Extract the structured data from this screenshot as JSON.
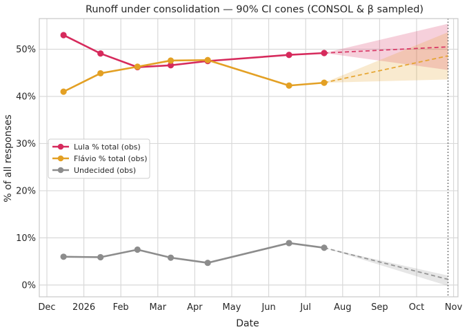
{
  "chart_data": {
    "type": "line",
    "title": "Runoff under consolidation — 90% CI cones (CONSOL & β sampled)",
    "xlabel": "Date",
    "ylabel": "% of all responses",
    "x_ticks": [
      "Dec",
      "2026",
      "Feb",
      "Mar",
      "Apr",
      "May",
      "Jun",
      "Jul",
      "Aug",
      "Sep",
      "Oct",
      "Nov"
    ],
    "y_ticks": [
      "0%",
      "10%",
      "20%",
      "30%",
      "40%",
      "50%"
    ],
    "ylim": [
      -2.5,
      56.5
    ],
    "grid": true,
    "legend_position": "center-left",
    "vertical_marker": {
      "x": 10.85,
      "style": "dotted"
    },
    "series": [
      {
        "name": "Lula % total (obs)",
        "color": "#d62a5c",
        "x": [
          0.45,
          1.45,
          2.45,
          3.35,
          4.35,
          6.55,
          7.5
        ],
        "values": [
          53.0,
          49.1,
          46.2,
          46.6,
          47.5,
          48.8,
          49.2
        ],
        "forecast": {
          "x": [
            7.5,
            10.85
          ],
          "values": [
            49.2,
            50.5
          ]
        },
        "ci_band": {
          "x": [
            7.5,
            10.85
          ],
          "lower": [
            49.2,
            45.6
          ],
          "upper": [
            49.2,
            55.4
          ]
        }
      },
      {
        "name": "Flávio % total (obs)",
        "color": "#e3a024",
        "x": [
          0.45,
          1.45,
          2.45,
          3.35,
          4.35,
          6.55,
          7.5
        ],
        "values": [
          41.0,
          44.9,
          46.3,
          47.6,
          47.7,
          42.3,
          42.9
        ],
        "forecast": {
          "x": [
            7.5,
            10.85
          ],
          "values": [
            42.9,
            48.6
          ]
        },
        "ci_band": {
          "x": [
            7.5,
            10.85
          ],
          "lower": [
            42.9,
            43.6
          ],
          "upper": [
            42.9,
            53.6
          ]
        }
      },
      {
        "name": "Undecided (obs)",
        "color": "#8c8c8c",
        "x": [
          0.45,
          1.45,
          2.45,
          3.35,
          4.35,
          6.55,
          7.5
        ],
        "values": [
          6.0,
          5.9,
          7.5,
          5.8,
          4.7,
          8.9,
          7.9
        ],
        "forecast": {
          "x": [
            7.5,
            10.85
          ],
          "values": [
            7.9,
            1.2
          ]
        },
        "ci_band": {
          "x": [
            7.5,
            10.85
          ],
          "lower": [
            7.9,
            -0.2
          ],
          "upper": [
            7.9,
            2.0
          ]
        }
      }
    ]
  }
}
